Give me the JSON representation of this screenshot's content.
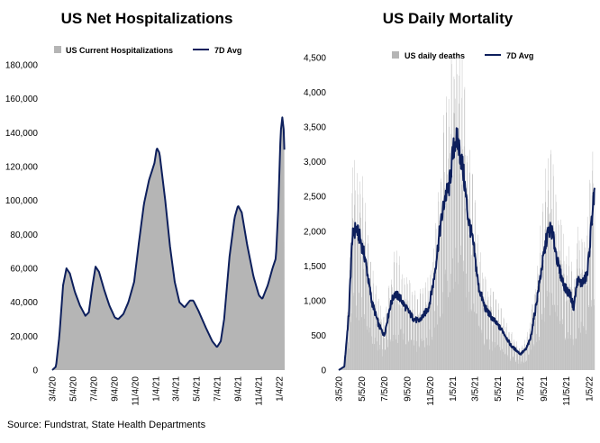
{
  "source": "Source: Fundstrat, State Health Departments",
  "colors": {
    "bar": "#b5b5b5",
    "line": "#0d1f5c"
  },
  "chart_data": [
    {
      "type": "area",
      "title": "US Net Hospitalizations",
      "ylim": [
        0,
        180000
      ],
      "yticks": [
        0,
        20000,
        40000,
        60000,
        80000,
        100000,
        120000,
        140000,
        160000,
        180000
      ],
      "ytick_labels": [
        "0",
        "20,000",
        "40,000",
        "60,000",
        "80,000",
        "100,000",
        "120,000",
        "140,000",
        "160,000",
        "180,000"
      ],
      "x_start": "2020-03-04",
      "x_end": "2022-01-20",
      "xtick_labels": [
        "3/4/20",
        "5/4/20",
        "7/4/20",
        "9/4/20",
        "11/4/20",
        "1/4/21",
        "3/4/21",
        "5/4/21",
        "7/4/21",
        "9/4/21",
        "11/4/21",
        "1/4/22"
      ],
      "xtick_dates": [
        "2020-03-04",
        "2020-05-04",
        "2020-07-04",
        "2020-09-04",
        "2020-11-04",
        "2021-01-04",
        "2021-03-04",
        "2021-05-04",
        "2021-07-04",
        "2021-09-04",
        "2021-11-04",
        "2022-01-04"
      ],
      "series": [
        {
          "name": "US Current Hospitalizations",
          "kind": "area"
        },
        {
          "name": "7D Avg",
          "kind": "line"
        }
      ],
      "points": [
        [
          "2020-03-04",
          0
        ],
        [
          "2020-03-15",
          2000
        ],
        [
          "2020-03-25",
          20000
        ],
        [
          "2020-04-05",
          50000
        ],
        [
          "2020-04-15",
          60000
        ],
        [
          "2020-04-25",
          57000
        ],
        [
          "2020-05-10",
          46000
        ],
        [
          "2020-05-25",
          38000
        ],
        [
          "2020-06-10",
          32000
        ],
        [
          "2020-06-20",
          34000
        ],
        [
          "2020-07-01",
          50000
        ],
        [
          "2020-07-10",
          61000
        ],
        [
          "2020-07-20",
          58000
        ],
        [
          "2020-08-05",
          47000
        ],
        [
          "2020-08-20",
          38000
        ],
        [
          "2020-09-05",
          31000
        ],
        [
          "2020-09-15",
          30000
        ],
        [
          "2020-09-30",
          33000
        ],
        [
          "2020-10-15",
          40000
        ],
        [
          "2020-11-01",
          52000
        ],
        [
          "2020-11-15",
          75000
        ],
        [
          "2020-11-30",
          98000
        ],
        [
          "2020-12-15",
          112000
        ],
        [
          "2020-12-31",
          122000
        ],
        [
          "2021-01-07",
          131000
        ],
        [
          "2021-01-15",
          128000
        ],
        [
          "2021-02-01",
          100000
        ],
        [
          "2021-02-15",
          73000
        ],
        [
          "2021-03-01",
          52000
        ],
        [
          "2021-03-15",
          40000
        ],
        [
          "2021-03-30",
          37000
        ],
        [
          "2021-04-15",
          41000
        ],
        [
          "2021-04-25",
          41000
        ],
        [
          "2021-05-10",
          35000
        ],
        [
          "2021-06-01",
          25000
        ],
        [
          "2021-06-20",
          17000
        ],
        [
          "2021-07-04",
          13500
        ],
        [
          "2021-07-15",
          17000
        ],
        [
          "2021-07-25",
          30000
        ],
        [
          "2021-08-10",
          67000
        ],
        [
          "2021-08-25",
          90000
        ],
        [
          "2021-09-04",
          97000
        ],
        [
          "2021-09-15",
          93000
        ],
        [
          "2021-10-01",
          74000
        ],
        [
          "2021-10-20",
          55000
        ],
        [
          "2021-11-05",
          44000
        ],
        [
          "2021-11-15",
          42000
        ],
        [
          "2021-12-01",
          50000
        ],
        [
          "2021-12-15",
          60000
        ],
        [
          "2021-12-25",
          66000
        ],
        [
          "2022-01-01",
          95000
        ],
        [
          "2022-01-08",
          140000
        ],
        [
          "2022-01-13",
          149000
        ],
        [
          "2022-01-17",
          142000
        ],
        [
          "2022-01-20",
          124000
        ]
      ]
    },
    {
      "type": "bar",
      "title": "US Daily Mortality",
      "ylim": [
        0,
        4500
      ],
      "yticks": [
        0,
        500,
        1000,
        1500,
        2000,
        2500,
        3000,
        3500,
        4000,
        4500
      ],
      "ytick_labels": [
        "0",
        "500",
        "1,000",
        "1,500",
        "2,000",
        "2,500",
        "3,000",
        "3,500",
        "4,000",
        "4,500"
      ],
      "x_start": "2020-03-05",
      "x_end": "2022-01-20",
      "xtick_labels": [
        "3/5/20",
        "5/5/20",
        "7/5/20",
        "9/5/20",
        "11/5/20",
        "1/5/21",
        "3/5/21",
        "5/5/21",
        "7/5/21",
        "9/5/21",
        "11/5/21",
        "1/5/22"
      ],
      "xtick_dates": [
        "2020-03-05",
        "2020-05-05",
        "2020-07-05",
        "2020-09-05",
        "2020-11-05",
        "2021-01-05",
        "2021-03-05",
        "2021-05-05",
        "2021-07-05",
        "2021-09-05",
        "2021-11-05",
        "2022-01-05"
      ],
      "series": [
        {
          "name": "US daily deaths",
          "kind": "bar"
        },
        {
          "name": "7D Avg",
          "kind": "line"
        }
      ],
      "points": [
        [
          "2020-03-05",
          0
        ],
        [
          "2020-03-20",
          50
        ],
        [
          "2020-04-01",
          800
        ],
        [
          "2020-04-10",
          1900
        ],
        [
          "2020-04-20",
          2050
        ],
        [
          "2020-05-01",
          1900
        ],
        [
          "2020-05-15",
          1600
        ],
        [
          "2020-06-01",
          1000
        ],
        [
          "2020-06-20",
          650
        ],
        [
          "2020-07-05",
          500
        ],
        [
          "2020-07-20",
          900
        ],
        [
          "2020-08-01",
          1100
        ],
        [
          "2020-08-15",
          1050
        ],
        [
          "2020-09-01",
          900
        ],
        [
          "2020-09-20",
          750
        ],
        [
          "2020-10-05",
          700
        ],
        [
          "2020-10-20",
          800
        ],
        [
          "2020-11-01",
          900
        ],
        [
          "2020-11-15",
          1300
        ],
        [
          "2020-12-01",
          2000
        ],
        [
          "2020-12-15",
          2500
        ],
        [
          "2020-12-25",
          2600
        ],
        [
          "2021-01-05",
          3100
        ],
        [
          "2021-01-12",
          3350
        ],
        [
          "2021-01-20",
          3250
        ],
        [
          "2021-02-01",
          2900
        ],
        [
          "2021-02-15",
          2200
        ],
        [
          "2021-03-01",
          1800
        ],
        [
          "2021-03-15",
          1200
        ],
        [
          "2021-04-01",
          900
        ],
        [
          "2021-04-20",
          750
        ],
        [
          "2021-05-05",
          650
        ],
        [
          "2021-05-20",
          550
        ],
        [
          "2021-06-10",
          350
        ],
        [
          "2021-06-25",
          280
        ],
        [
          "2021-07-05",
          230
        ],
        [
          "2021-07-20",
          300
        ],
        [
          "2021-08-01",
          450
        ],
        [
          "2021-08-15",
          900
        ],
        [
          "2021-09-01",
          1500
        ],
        [
          "2021-09-15",
          1950
        ],
        [
          "2021-09-25",
          2050
        ],
        [
          "2021-10-05",
          1800
        ],
        [
          "2021-10-15",
          1500
        ],
        [
          "2021-10-25",
          1300
        ],
        [
          "2021-11-05",
          1150
        ],
        [
          "2021-11-15",
          1100
        ],
        [
          "2021-11-25",
          900
        ],
        [
          "2021-12-05",
          1300
        ],
        [
          "2021-12-15",
          1250
        ],
        [
          "2021-12-25",
          1300
        ],
        [
          "2022-01-01",
          1400
        ],
        [
          "2022-01-10",
          2000
        ],
        [
          "2022-01-15",
          2350
        ],
        [
          "2022-01-20",
          2550
        ]
      ]
    }
  ]
}
